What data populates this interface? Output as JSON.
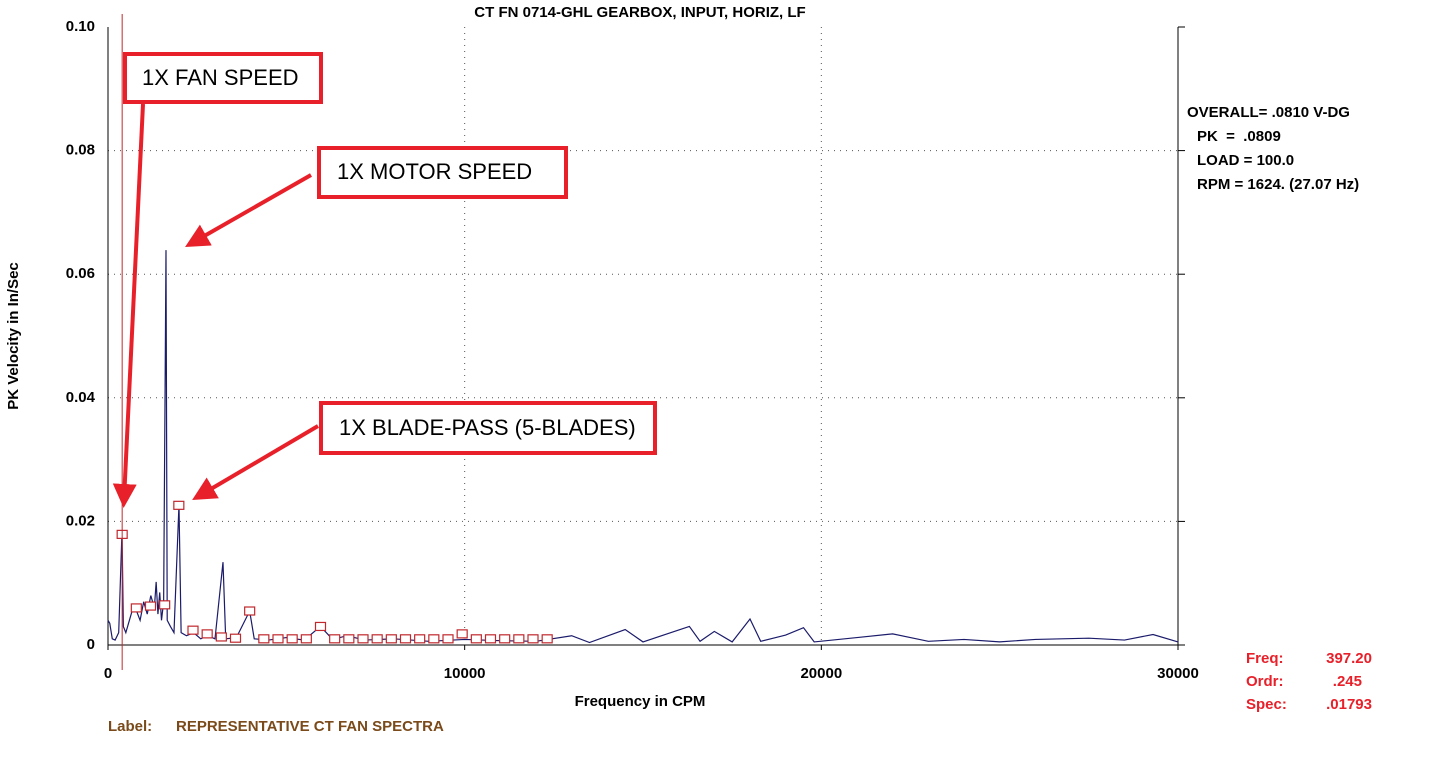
{
  "chart_data": {
    "type": "line",
    "title": "CT FN 0714-GHL   GEARBOX, INPUT, HORIZ, LF",
    "x_label": "Frequency in CPM",
    "y_label": "PK Velocity in In/Sec",
    "xlim": [
      0,
      30000
    ],
    "ylim": [
      0,
      0.1
    ],
    "xticks": [
      0,
      10000,
      20000,
      30000
    ],
    "yticks": [
      0,
      0.02,
      0.04,
      0.06,
      0.08,
      {
        "value": 0.1,
        "label": "0.10"
      }
    ],
    "grid": true,
    "color": "#1b1b6b",
    "x": [
      0,
      50,
      120,
      200,
      300,
      393,
      430,
      500,
      600,
      700,
      800,
      900,
      1000,
      1100,
      1200,
      1300,
      1350,
      1400,
      1450,
      1500,
      1560,
      1600,
      1626,
      1660,
      1750,
      1850,
      1990,
      2050,
      2200,
      2400,
      2600,
      2800,
      3000,
      3224,
      3300,
      3600,
      3972,
      4100,
      4500,
      5000,
      5500,
      5958,
      6300,
      6700,
      7200,
      8000,
      9000,
      10000,
      11000,
      12000,
      13000,
      13500,
      14500,
      15000,
      16300,
      16600,
      17000,
      17500,
      18000,
      18300,
      19000,
      19500,
      19800,
      21000,
      22000,
      23000,
      24000,
      25000,
      26000,
      27500,
      28500,
      29300,
      30000
    ],
    "values": [
      0.004,
      0.0035,
      0.001,
      0.0008,
      0.002,
      0.0186,
      0.003,
      0.002,
      0.004,
      0.006,
      0.0055,
      0.004,
      0.007,
      0.005,
      0.008,
      0.006,
      0.0102,
      0.005,
      0.0085,
      0.004,
      0.007,
      0.041,
      0.0639,
      0.004,
      0.003,
      0.002,
      0.0227,
      0.002,
      0.0015,
      0.002,
      0.001,
      0.0015,
      0.001,
      0.0134,
      0.001,
      0.0012,
      0.0055,
      0.001,
      0.0008,
      0.0012,
      0.0008,
      0.003,
      0.0009,
      0.0015,
      0.0008,
      0.001,
      0.0006,
      0.0009,
      0.0007,
      0.0006,
      0.0015,
      0.0004,
      0.0025,
      0.0005,
      0.003,
      0.0006,
      0.0022,
      0.0005,
      0.0042,
      0.0006,
      0.0016,
      0.0028,
      0.0005,
      0.0012,
      0.0018,
      0.0006,
      0.0009,
      0.0005,
      0.0009,
      0.0011,
      0.0008,
      0.0017,
      0.0005
    ],
    "markers": {
      "color": "#c0282d",
      "x": [
        397.2,
        794.4,
        1191.6,
        1588.8,
        1986,
        2383.2,
        2780.4,
        3177.6,
        3574.8,
        3972,
        4369.2,
        4766.4,
        5163.6,
        5560.8,
        5958,
        6355.2,
        6752.4,
        7149.6,
        7546.8,
        7944,
        8341.2,
        8738.4,
        9135.6,
        9532.8,
        9930,
        10327.2,
        10724.4,
        11121.6,
        11518.8,
        11916,
        12313.2
      ],
      "values": [
        0.0179,
        0.006,
        0.0063,
        0.0065,
        0.0226,
        0.0024,
        0.0018,
        0.0013,
        0.0011,
        0.0055,
        0.001,
        0.001,
        0.001,
        0.001,
        0.003,
        0.001,
        0.001,
        0.001,
        0.001,
        0.001,
        0.001,
        0.001,
        0.001,
        0.001,
        0.0018,
        0.001,
        0.001,
        0.001,
        0.001,
        0.001,
        0.001
      ]
    },
    "annotations": [
      "1X FAN SPEED",
      "1X MOTOR SPEED",
      "1X BLADE-PASS (5-BLADES)"
    ],
    "info": [
      "OVERALL= .0810 V-DG",
      "PK  =  .0809",
      "LOAD = 100.0",
      "RPM = 1624. (27.07 Hz)"
    ],
    "cursor": {
      "freq_label": "Freq:",
      "freq": {
        "value": 397.2,
        "label": "397.20"
      },
      "ordr_label": "Ordr:",
      "ordr": ".245",
      "spec_label": "Spec:",
      "spec": ".01793"
    },
    "label_caption": "Label:",
    "label_text": "REPRESENTATIVE CT FAN SPECTRA"
  }
}
